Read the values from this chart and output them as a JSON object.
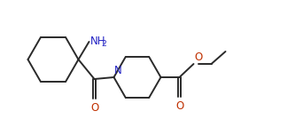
{
  "bg_color": "#ffffff",
  "line_color": "#2a2a2a",
  "n_color": "#2323c4",
  "o_color": "#c03000",
  "line_width": 1.4,
  "font_size": 8.5,
  "figsize": [
    3.42,
    1.34
  ],
  "dpi": 100,
  "xlim": [
    0,
    3.42
  ],
  "ylim": [
    0,
    1.34
  ]
}
